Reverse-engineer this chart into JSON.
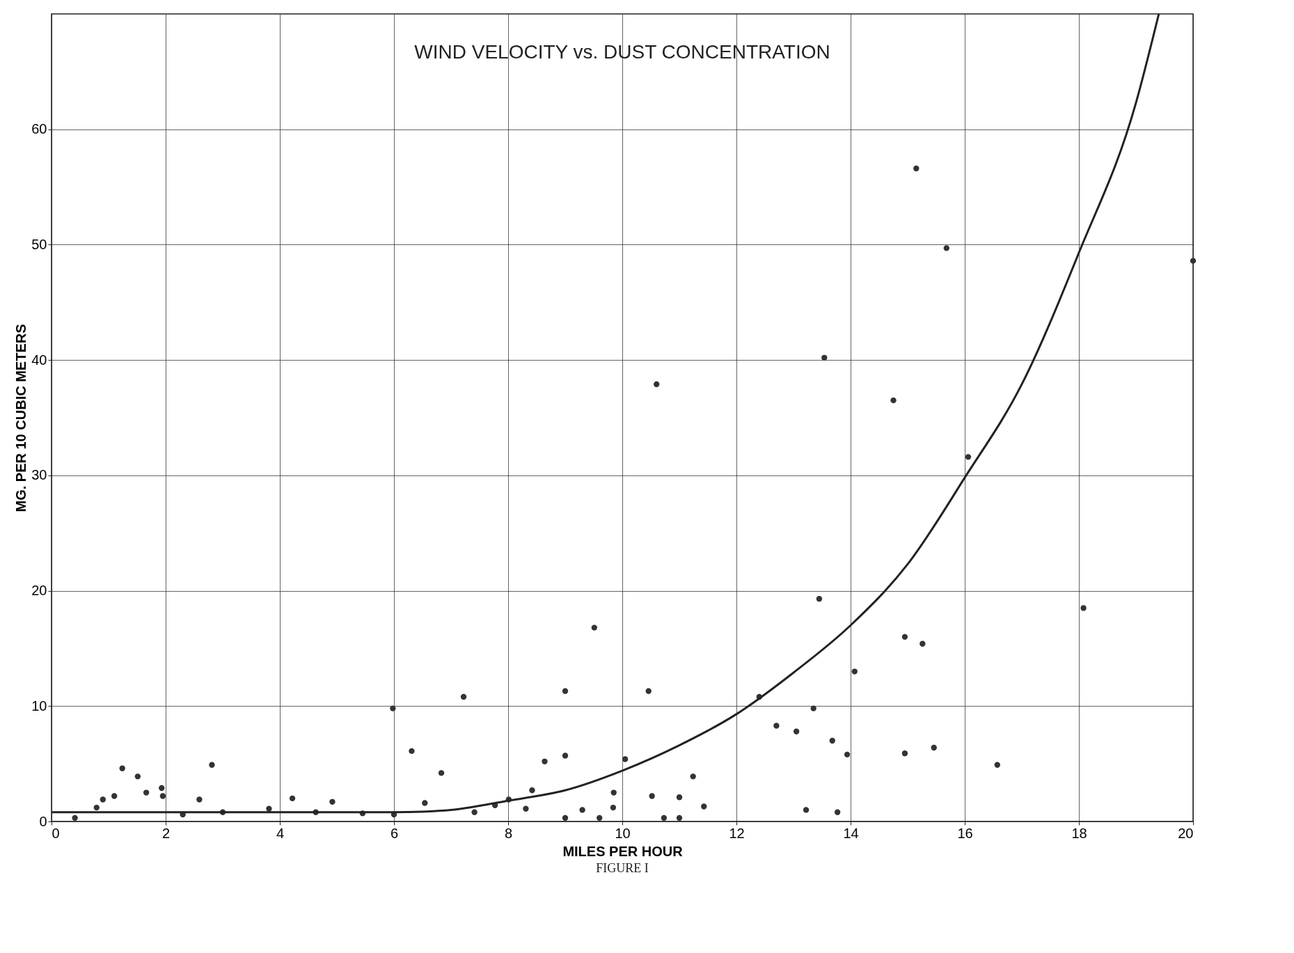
{
  "chart_data": {
    "type": "scatter",
    "title": "WIND VELOCITY vs. DUST CONCENTRATION",
    "xlabel": "MILES PER HOUR",
    "ylabel": "MG. PER 10 CUBIC METERS",
    "annotations": [
      "FIGURE I"
    ],
    "xlim": [
      0,
      20
    ],
    "ylim": [
      0,
      70
    ],
    "xticks": [
      0,
      2,
      4,
      6,
      8,
      10,
      12,
      14,
      16,
      18,
      20
    ],
    "yticks": [
      0,
      10,
      20,
      30,
      40,
      50,
      60
    ],
    "grid": true,
    "marker": "circle",
    "series": [
      {
        "color": "#333333",
        "x": [
          15.15,
          15.68,
          20,
          13.54,
          10.6,
          14.75,
          16.06,
          13.45,
          18.08,
          9.51,
          14.95,
          15.26,
          14.07,
          9.0,
          10.46,
          7.22,
          12.4,
          13.35,
          5.98,
          12.7,
          13.05,
          13.68,
          13.94,
          14.95,
          15.46,
          16.57,
          6.31,
          9.0,
          8.64,
          10.05,
          6.83,
          11.24,
          8.42,
          10.52,
          11.0,
          9.85,
          11.43,
          13.22,
          13.77,
          10.73,
          11.0,
          9.3,
          9.84,
          9.6,
          9.0,
          1.24,
          1.51,
          2.81,
          1.66,
          1.93,
          1.95,
          1.1,
          0.9,
          0.79,
          0.41,
          2.59,
          4.22,
          4.92,
          3.81,
          3.0,
          2.3,
          4.63,
          5.45,
          6.0,
          6.54,
          7.41,
          7.77,
          8.01,
          8.31
        ],
        "values": [
          56.6,
          49.7,
          48.6,
          40.2,
          37.9,
          36.5,
          31.6,
          19.3,
          18.5,
          16.8,
          16.0,
          15.4,
          13.0,
          11.3,
          11.3,
          10.8,
          10.8,
          9.8,
          9.8,
          8.3,
          7.8,
          7.0,
          5.8,
          5.9,
          6.4,
          4.9,
          6.1,
          5.7,
          5.2,
          5.4,
          4.2,
          3.9,
          2.7,
          2.2,
          2.1,
          2.5,
          1.3,
          1.0,
          0.8,
          0.3,
          0.3,
          1.0,
          1.2,
          0.3,
          0.3,
          4.6,
          3.9,
          4.9,
          2.5,
          2.9,
          2.2,
          2.2,
          1.9,
          1.2,
          0.3,
          1.9,
          2.0,
          1.7,
          1.1,
          0.8,
          0.6,
          0.8,
          0.7,
          0.6,
          1.6,
          0.8,
          1.4,
          1.9,
          1.1
        ]
      },
      {
        "type": "line",
        "color": "#222222",
        "marker": "none",
        "x": [
          0,
          2,
          4,
          6,
          6.5,
          7,
          8,
          9,
          10,
          11,
          12,
          13,
          14,
          15,
          16,
          17,
          18,
          19,
          19.4
        ],
        "values": [
          0.8,
          0.8,
          0.8,
          0.8,
          0.85,
          1.0,
          1.8,
          2.7,
          4.4,
          6.6,
          9.3,
          12.9,
          17.0,
          22.3,
          29.8,
          37.9,
          49.3,
          62.3,
          70
        ]
      }
    ]
  }
}
